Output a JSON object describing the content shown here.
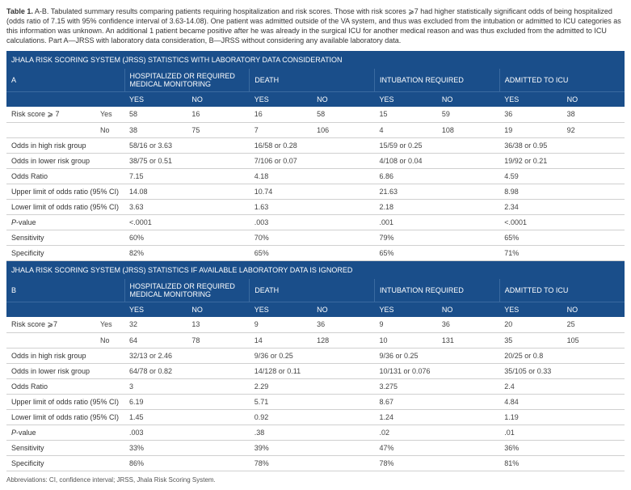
{
  "caption": {
    "title": "Table 1.",
    "text": " A-B. Tabulated summary results comparing patients requiring hospitalization and risk scores. Those with risk scores ⩾7 had higher statistically significant odds of being hospitalized (odds ratio of 7.15 with 95% confidence interval of 3.63-14.08). One patient was admitted outside of the VA system, and thus was excluded from the intubation or admitted to ICU categories as this information was unknown. An additional 1 patient became positive after he was already in the surgical ICU for another medical reason and was thus excluded from the admitted to ICU calculations. Part A—JRSS with laboratory data consideration, B—JRSS without considering any available laboratory data."
  },
  "sections": {
    "A": {
      "header": "JHALA RISK SCORING SYSTEM (JRSS) STATISTICS WITH LABORATORY DATA CONSIDERATION",
      "part": "A",
      "columns": [
        "HOSPITALIZED OR REQUIRED MEDICAL MONITORING",
        "DEATH",
        "INTUBATION REQUIRED",
        "ADMITTED TO ICU"
      ],
      "yesno": [
        "YES",
        "NO"
      ],
      "riskLabel": "Risk score ⩾ 7",
      "riskYes": {
        "label": "Yes",
        "vals": [
          "58",
          "16",
          "16",
          "58",
          "15",
          "59",
          "36",
          "38"
        ]
      },
      "riskNo": {
        "label": "No",
        "vals": [
          "38",
          "75",
          "7",
          "106",
          "4",
          "108",
          "19",
          "92"
        ]
      },
      "rows": [
        {
          "label": "Odds in high risk group",
          "vals": [
            "58/16 or 3.63",
            "16/58 or 0.28",
            "15/59 or 0.25",
            "36/38 or 0.95"
          ]
        },
        {
          "label": "Odds in lower risk group",
          "vals": [
            "38/75 or 0.51",
            "7/106 or 0.07",
            "4/108 or 0.04",
            "19/92 or 0.21"
          ]
        },
        {
          "label": "Odds Ratio",
          "vals": [
            "7.15",
            "4.18",
            "6.86",
            "4.59"
          ]
        },
        {
          "label": "Upper limit of odds ratio (95% CI)",
          "vals": [
            "14.08",
            "10.74",
            "21.63",
            "8.98"
          ]
        },
        {
          "label": "Lower limit of odds ratio (95% CI)",
          "vals": [
            "3.63",
            "1.63",
            "2.18",
            "2.34"
          ]
        },
        {
          "label": "P-value",
          "italic": true,
          "vals": [
            "<.0001",
            ".003",
            ".001",
            "<.0001"
          ]
        },
        {
          "label": "Sensitivity",
          "vals": [
            "60%",
            "70%",
            "79%",
            "65%"
          ]
        },
        {
          "label": "Specificity",
          "vals": [
            "82%",
            "65%",
            "65%",
            "71%"
          ]
        }
      ]
    },
    "B": {
      "header": "JHALA RISK SCORING SYSTEM (JRSS) STATISTICS IF AVAILABLE LABORATORY DATA IS IGNORED",
      "part": "B",
      "columns": [
        "HOSPITALIZED OR REQUIRED MEDICAL MONITORING",
        "DEATH",
        "INTUBATION REQUIRED",
        "ADMITTED TO ICU"
      ],
      "yesno": [
        "YES",
        "NO"
      ],
      "riskLabel": "Risk score ⩾7",
      "riskYes": {
        "label": "Yes",
        "vals": [
          "32",
          "13",
          "9",
          "36",
          "9",
          "36",
          "20",
          "25"
        ]
      },
      "riskNo": {
        "label": "No",
        "vals": [
          "64",
          "78",
          "14",
          "128",
          "10",
          "131",
          "35",
          "105"
        ]
      },
      "rows": [
        {
          "label": "Odds in high risk group",
          "vals": [
            "32/13 or 2.46",
            "9/36 or 0.25",
            "9/36 or 0.25",
            "20/25 or 0.8"
          ]
        },
        {
          "label": "Odds in lower risk group",
          "vals": [
            "64/78 or 0.82",
            "14/128 or 0.11",
            "10/131 or 0.076",
            "35/105 or 0.33"
          ]
        },
        {
          "label": "Odds Ratio",
          "vals": [
            "3",
            "2.29",
            "3.275",
            "2.4"
          ]
        },
        {
          "label": "Upper limit of odds ratio (95% CI)",
          "vals": [
            "6.19",
            "5.71",
            "8.67",
            "4.84"
          ]
        },
        {
          "label": "Lower limit of odds ratio (95% CI)",
          "vals": [
            "1.45",
            "0.92",
            "1.24",
            "1.19"
          ]
        },
        {
          "label": "P-value",
          "italic": true,
          "vals": [
            ".003",
            ".38",
            ".02",
            ".01"
          ]
        },
        {
          "label": "Sensitivity",
          "vals": [
            "33%",
            "39%",
            "47%",
            "36%"
          ]
        },
        {
          "label": "Specificity",
          "vals": [
            "86%",
            "78%",
            "78%",
            "81%"
          ]
        }
      ]
    }
  },
  "abbrev": "Abbreviations: CI, confidence interval; JRSS, Jhala Risk Scoring System."
}
